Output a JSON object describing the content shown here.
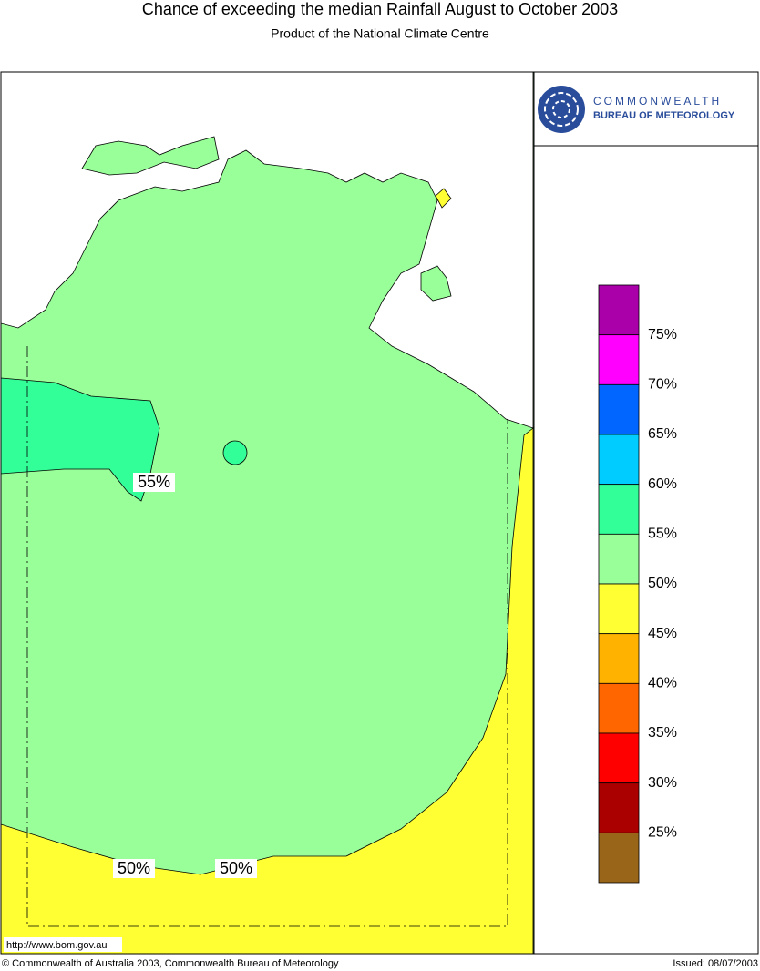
{
  "header": {
    "title": "Chance of exceeding the median Rainfall August to October 2003",
    "subtitle": "Product of the National Climate Centre"
  },
  "logo": {
    "line1": "COMMONWEALTH",
    "line2": "BUREAU OF METEOROLOGY"
  },
  "legend": {
    "labels": [
      "75%",
      "70%",
      "65%",
      "60%",
      "55%",
      "50%",
      "45%",
      "40%",
      "35%",
      "30%",
      "25%"
    ],
    "colors": [
      "#aa00aa",
      "#ff00ff",
      "#0066ff",
      "#00ccff",
      "#33ff99",
      "#99ff99",
      "#ffff33",
      "#ffb300",
      "#ff6600",
      "#ff0000",
      "#aa0000",
      "#996619"
    ]
  },
  "map": {
    "contour_labels": [
      "55%",
      "50%",
      "50%"
    ],
    "url": "http://www.bom.gov.au"
  },
  "footer": {
    "copyright": "© Commonwealth of Australia 2003, Commonwealth Bureau of Meteorology",
    "issued": "Issued: 08/07/2003"
  }
}
